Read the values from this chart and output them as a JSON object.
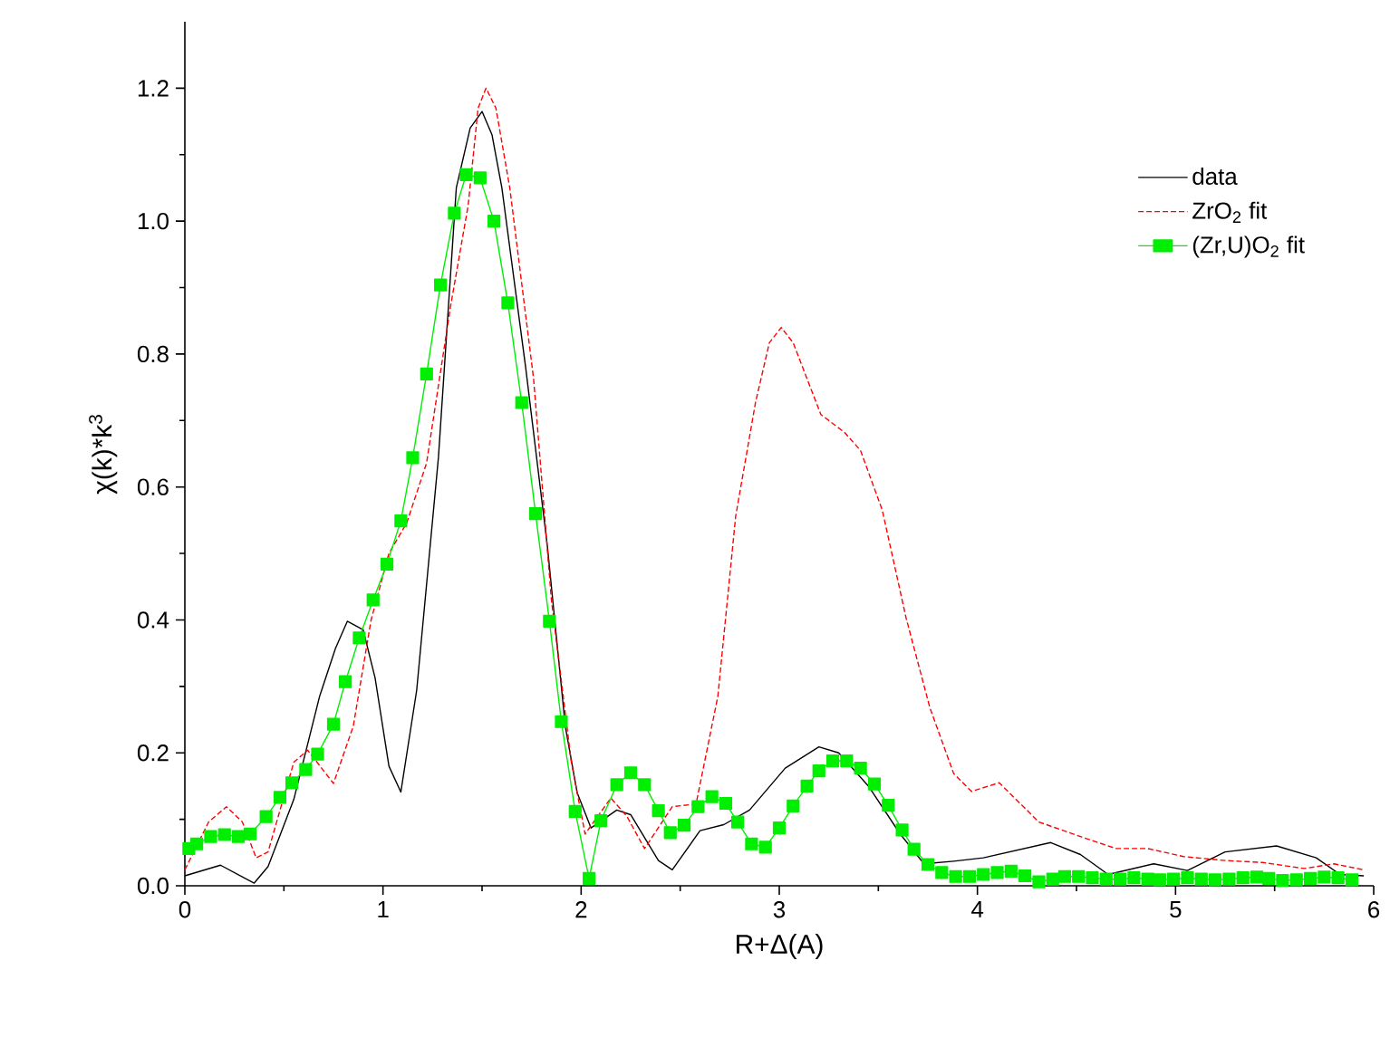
{
  "chart_data": {
    "type": "line",
    "xlabel": "R+Δ(A)",
    "ylabel": "χ(k)*k$^{3}$",
    "xlim": [
      0,
      6
    ],
    "ylim": [
      0,
      1.3
    ],
    "xticks": [
      0,
      1,
      2,
      3,
      4,
      5,
      6
    ],
    "yticks": [
      {
        "value": 0,
        "label": "0.0"
      },
      {
        "value": 0.2,
        "label": "0.2"
      },
      {
        "value": 0.4,
        "label": "0.4"
      },
      {
        "value": 0.6,
        "label": "0.6"
      },
      {
        "value": 0.8,
        "label": "0.8"
      },
      {
        "value": 1.0,
        "label": "1.0"
      },
      {
        "value": 1.2,
        "label": "1.2"
      }
    ],
    "legend": "top right",
    "grid": false,
    "series": [
      {
        "name": "data",
        "color": "#000000",
        "line_style": "solid",
        "marker": "none",
        "x": [
          0,
          0.18,
          0.35,
          0.42,
          0.55,
          0.68,
          0.76,
          0.82,
          0.9,
          0.96,
          1.03,
          1.09,
          1.17,
          1.28,
          1.37,
          1.44,
          1.5,
          1.55,
          1.6,
          1.72,
          1.83,
          1.92,
          1.98,
          2.05,
          2.18,
          2.25,
          2.39,
          2.46,
          2.6,
          2.72,
          2.85,
          3.03,
          3.2,
          3.3,
          3.45,
          3.61,
          3.73,
          3.88,
          4.03,
          4.37,
          4.52,
          4.66,
          4.89,
          5.06,
          5.25,
          5.51,
          5.71,
          5.83,
          5.95
        ],
        "values": [
          0.015,
          0.031,
          0.004,
          0.029,
          0.13,
          0.285,
          0.357,
          0.398,
          0.385,
          0.313,
          0.18,
          0.141,
          0.294,
          0.645,
          1.05,
          1.14,
          1.165,
          1.13,
          1.05,
          0.78,
          0.51,
          0.24,
          0.14,
          0.087,
          0.114,
          0.107,
          0.038,
          0.024,
          0.083,
          0.092,
          0.114,
          0.177,
          0.209,
          0.2,
          0.15,
          0.078,
          0.033,
          0.037,
          0.042,
          0.065,
          0.047,
          0.017,
          0.033,
          0.023,
          0.051,
          0.06,
          0.042,
          0.017,
          0.015
        ]
      },
      {
        "name": "ZrO$_{2}$ fit",
        "color": "#ff0000",
        "line_style": "dashed",
        "marker": "none",
        "x": [
          0,
          0.12,
          0.21,
          0.29,
          0.36,
          0.42,
          0.55,
          0.62,
          0.75,
          0.85,
          0.94,
          1.03,
          1.12,
          1.22,
          1.34,
          1.43,
          1.48,
          1.52,
          1.57,
          1.64,
          1.76,
          1.85,
          1.95,
          2.02,
          2.15,
          2.23,
          2.32,
          2.46,
          2.58,
          2.69,
          2.78,
          2.88,
          2.95,
          3.01,
          3.07,
          3.21,
          3.33,
          3.41,
          3.52,
          3.64,
          3.76,
          3.88,
          3.97,
          4.11,
          4.31,
          4.52,
          4.7,
          4.86,
          5.04,
          5.25,
          5.44,
          5.65,
          5.8,
          5.95
        ],
        "values": [
          0.024,
          0.096,
          0.119,
          0.096,
          0.042,
          0.051,
          0.186,
          0.204,
          0.154,
          0.24,
          0.4,
          0.5,
          0.546,
          0.636,
          0.87,
          1.024,
          1.17,
          1.2,
          1.17,
          1.05,
          0.763,
          0.43,
          0.187,
          0.078,
          0.132,
          0.105,
          0.056,
          0.119,
          0.123,
          0.285,
          0.556,
          0.727,
          0.817,
          0.84,
          0.817,
          0.709,
          0.682,
          0.655,
          0.565,
          0.403,
          0.268,
          0.169,
          0.142,
          0.155,
          0.096,
          0.074,
          0.056,
          0.056,
          0.044,
          0.038,
          0.035,
          0.026,
          0.033,
          0.024
        ]
      },
      {
        "name": "(Zr,U)O$_{2}$ fit",
        "color": "#00ee00",
        "line_style": "solid",
        "marker": "square",
        "x": [
          0.02,
          0.06,
          0.13,
          0.2,
          0.27,
          0.33,
          0.41,
          0.48,
          0.54,
          0.61,
          0.67,
          0.75,
          0.81,
          0.88,
          0.95,
          1.02,
          1.09,
          1.15,
          1.22,
          1.29,
          1.36,
          1.42,
          1.49,
          1.56,
          1.63,
          1.7,
          1.77,
          1.84,
          1.9,
          1.97,
          2.04,
          2.1,
          2.18,
          2.25,
          2.32,
          2.39,
          2.45,
          2.52,
          2.59,
          2.66,
          2.73,
          2.79,
          2.86,
          2.93,
          3.0,
          3.07,
          3.14,
          3.2,
          3.27,
          3.34,
          3.41,
          3.48,
          3.55,
          3.62,
          3.68,
          3.75,
          3.82,
          3.89,
          3.96,
          4.03,
          4.1,
          4.17,
          4.24,
          4.31,
          4.38,
          4.44,
          4.51,
          4.58,
          4.65,
          4.72,
          4.79,
          4.86,
          4.92,
          4.99,
          5.06,
          5.13,
          5.2,
          5.27,
          5.34,
          5.41,
          5.47,
          5.54,
          5.61,
          5.68,
          5.75,
          5.82,
          5.89
        ],
        "values": [
          0.056,
          0.063,
          0.074,
          0.077,
          0.074,
          0.078,
          0.104,
          0.133,
          0.155,
          0.175,
          0.198,
          0.243,
          0.307,
          0.373,
          0.43,
          0.484,
          0.549,
          0.644,
          0.77,
          0.904,
          1.012,
          1.07,
          1.065,
          1.0,
          0.877,
          0.727,
          0.56,
          0.398,
          0.247,
          0.112,
          0.011,
          0.098,
          0.152,
          0.17,
          0.152,
          0.113,
          0.08,
          0.091,
          0.119,
          0.134,
          0.124,
          0.096,
          0.063,
          0.058,
          0.087,
          0.12,
          0.15,
          0.173,
          0.188,
          0.188,
          0.177,
          0.153,
          0.121,
          0.084,
          0.055,
          0.032,
          0.02,
          0.014,
          0.014,
          0.017,
          0.02,
          0.022,
          0.015,
          0.006,
          0.01,
          0.014,
          0.014,
          0.012,
          0.01,
          0.01,
          0.012,
          0.01,
          0.009,
          0.01,
          0.012,
          0.01,
          0.009,
          0.01,
          0.012,
          0.013,
          0.011,
          0.008,
          0.009,
          0.011,
          0.013,
          0.012,
          0.009
        ]
      }
    ]
  }
}
